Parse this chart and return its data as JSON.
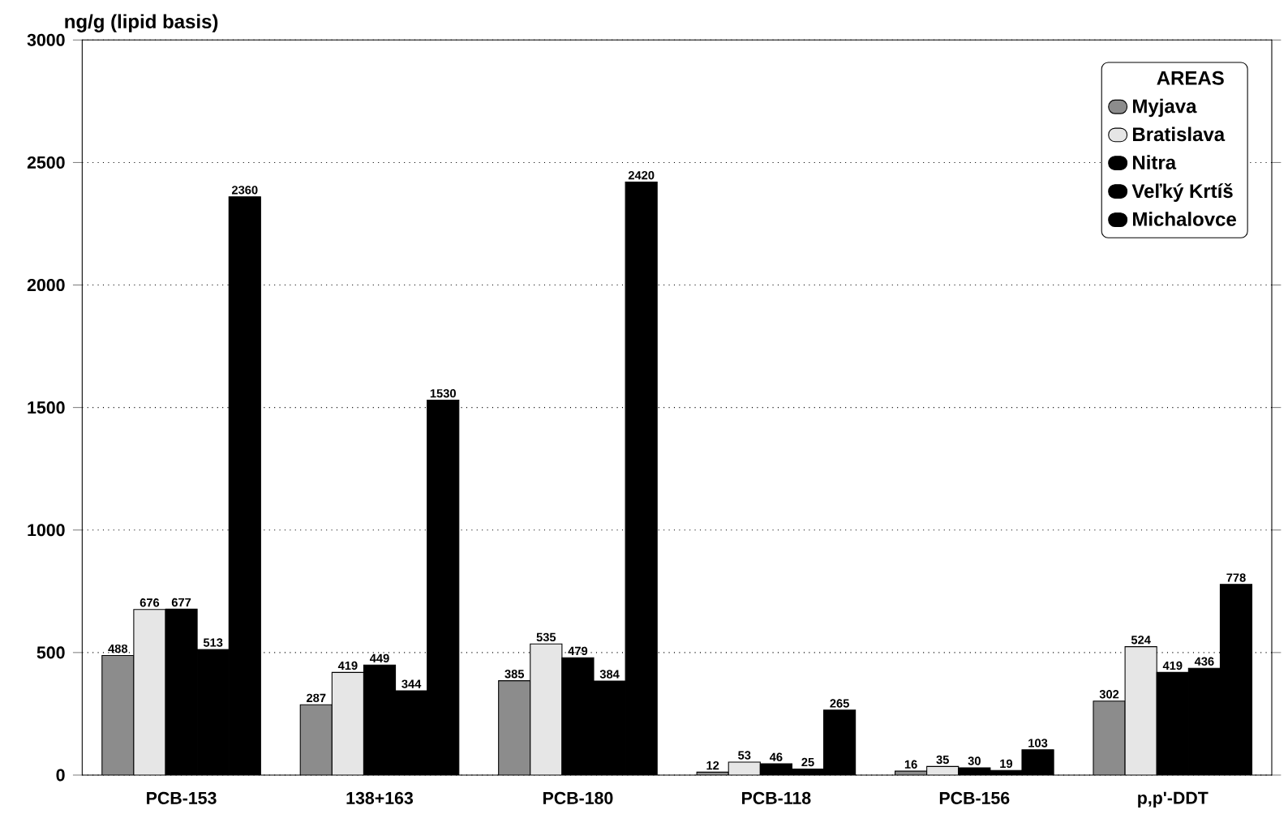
{
  "chart_data": {
    "type": "bar",
    "ylabel": "ng/g (lipid basis)",
    "legend_title": "AREAS",
    "categories": [
      "PCB-153",
      "138+163",
      "PCB-180",
      "PCB-118",
      "PCB-156",
      "p,p'-DDT"
    ],
    "series": [
      {
        "name": "Myjava",
        "color": "#8c8c8c",
        "values": [
          488,
          287,
          385,
          12,
          16,
          302
        ]
      },
      {
        "name": "Bratislava",
        "color": "#e6e6e6",
        "values": [
          676,
          419,
          535,
          53,
          35,
          524
        ]
      },
      {
        "name": "Nitra",
        "color": "#000000",
        "values": [
          677,
          449,
          479,
          46,
          30,
          419
        ]
      },
      {
        "name": "Veľký Krtíš",
        "color": "#000000",
        "values": [
          513,
          344,
          384,
          25,
          19,
          436
        ]
      },
      {
        "name": "Michalovce",
        "color": "#000000",
        "values": [
          2360,
          1530,
          2420,
          265,
          103,
          778
        ]
      }
    ],
    "ylim": [
      0,
      3000
    ],
    "yticks": [
      0,
      500,
      1000,
      1500,
      2000,
      2500,
      3000
    ],
    "grid": "y",
    "legend": "top right",
    "data_labels": true
  }
}
